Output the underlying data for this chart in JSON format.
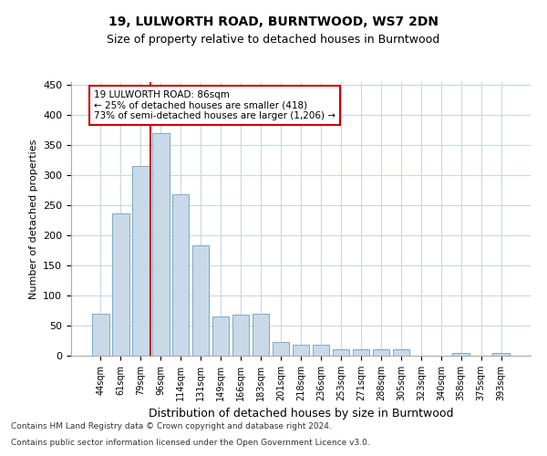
{
  "title": "19, LULWORTH ROAD, BURNTWOOD, WS7 2DN",
  "subtitle": "Size of property relative to detached houses in Burntwood",
  "xlabel": "Distribution of detached houses by size in Burntwood",
  "ylabel": "Number of detached properties",
  "categories": [
    "44sqm",
    "61sqm",
    "79sqm",
    "96sqm",
    "114sqm",
    "131sqm",
    "149sqm",
    "166sqm",
    "183sqm",
    "201sqm",
    "218sqm",
    "236sqm",
    "253sqm",
    "271sqm",
    "288sqm",
    "305sqm",
    "323sqm",
    "340sqm",
    "358sqm",
    "375sqm",
    "393sqm"
  ],
  "values": [
    70,
    237,
    315,
    370,
    268,
    183,
    65,
    68,
    70,
    22,
    18,
    18,
    10,
    10,
    10,
    10,
    0,
    0,
    4,
    0,
    4
  ],
  "bar_color": "#c9d9e8",
  "bar_edge_color": "#7aaac8",
  "grid_color": "#c8d8e8",
  "background_color": "#ffffff",
  "vline_x": 2.5,
  "annotation_text": "19 LULWORTH ROAD: 86sqm\n← 25% of detached houses are smaller (418)\n73% of semi-detached houses are larger (1,206) →",
  "annotation_box_color": "#ffffff",
  "annotation_box_edge": "#cc0000",
  "vline_color": "#cc0000",
  "ylim": [
    0,
    455
  ],
  "yticks": [
    0,
    50,
    100,
    150,
    200,
    250,
    300,
    350,
    400,
    450
  ],
  "footnote1": "Contains HM Land Registry data © Crown copyright and database right 2024.",
  "footnote2": "Contains public sector information licensed under the Open Government Licence v3.0."
}
